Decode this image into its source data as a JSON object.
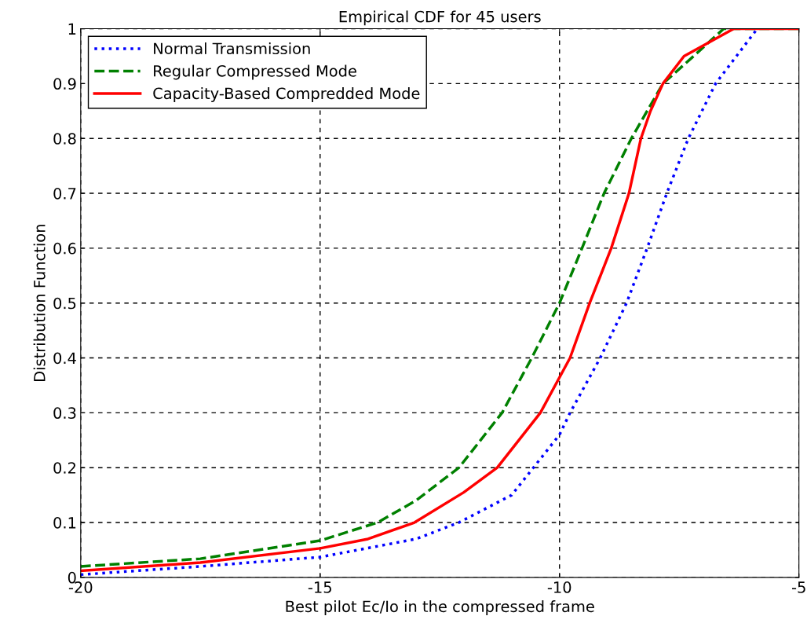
{
  "chart_data": {
    "type": "line",
    "title": "Empirical CDF for 45 users",
    "xlabel": "Best pilot Ec/Io in the compressed frame",
    "ylabel": "Distribution Function",
    "xlim": [
      -20,
      -5
    ],
    "xticks": [
      -20,
      -15,
      -10,
      -5
    ],
    "ylim": [
      0,
      1
    ],
    "yticks": [
      0,
      0.1,
      0.2,
      0.3,
      0.4,
      0.5,
      0.6,
      0.7,
      0.8,
      0.9,
      1
    ],
    "grid": true,
    "legend": "top left",
    "marker": "none",
    "series": [
      {
        "name": "Normal Transmission",
        "color": "#0000ff",
        "line_style": "dotted",
        "x": [
          -20,
          -17.5,
          -15,
          -13,
          -12.1,
          -11,
          -10,
          -9.78,
          -9.15,
          -8.6,
          -8.17,
          -7.76,
          -7.31,
          -6.74,
          -5.87
        ],
        "values": [
          0.005,
          0.02,
          0.037,
          0.07,
          0.1,
          0.15,
          0.26,
          0.3,
          0.4,
          0.5,
          0.6,
          0.7,
          0.8,
          0.9,
          1
        ]
      },
      {
        "name": "Regular Compressed Mode",
        "color": "#008000",
        "line_style": "dashed",
        "x": [
          -20,
          -17.5,
          -15,
          -13.8,
          -13,
          -12.1,
          -11.2,
          -10.58,
          -10,
          -9.53,
          -9.07,
          -8.5,
          -7.84,
          -7.2,
          -6.57,
          -5
        ],
        "values": [
          0.02,
          0.034,
          0.067,
          0.1,
          0.14,
          0.2,
          0.3,
          0.4,
          0.5,
          0.6,
          0.7,
          0.8,
          0.9,
          0.95,
          1,
          1
        ]
      },
      {
        "name": "Capacity-Based Compredded Mode",
        "color": "#ff0000",
        "line_style": "solid",
        "x": [
          -20,
          -17.5,
          -15,
          -14,
          -13.03,
          -12,
          -11.3,
          -10.4,
          -9.78,
          -9.37,
          -8.92,
          -8.55,
          -8.3,
          -8.1,
          -7.84,
          -7.4,
          -6.36,
          -5
        ],
        "values": [
          0.012,
          0.027,
          0.053,
          0.07,
          0.1,
          0.155,
          0.2,
          0.3,
          0.4,
          0.5,
          0.6,
          0.7,
          0.8,
          0.85,
          0.9,
          0.95,
          1,
          1
        ]
      }
    ]
  }
}
